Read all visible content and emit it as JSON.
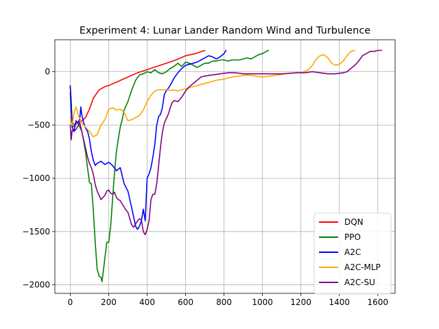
{
  "chart_data": {
    "type": "line",
    "title": "Experiment 4: Lunar Lander Random Wind and Turbulence",
    "xlabel": "",
    "ylabel": "",
    "xlim": [
      -80,
      1690
    ],
    "ylim": [
      -2080,
      300
    ],
    "xticks": [
      0,
      200,
      400,
      600,
      800,
      1000,
      1200,
      1400,
      1600
    ],
    "yticks": [
      -2000,
      -1500,
      -1000,
      -500,
      0
    ],
    "ytick_labels": [
      "−2000",
      "−1500",
      "−1000",
      "−500",
      "0"
    ],
    "grid": true,
    "legend_position": "lower-right",
    "series": [
      {
        "name": "DQN",
        "color": "#ff0000",
        "points": [
          [
            0,
            -130
          ],
          [
            5,
            -280
          ],
          [
            10,
            -470
          ],
          [
            20,
            -500
          ],
          [
            40,
            -480
          ],
          [
            60,
            -460
          ],
          [
            80,
            -430
          ],
          [
            100,
            -350
          ],
          [
            120,
            -250
          ],
          [
            150,
            -170
          ],
          [
            180,
            -140
          ],
          [
            200,
            -130
          ],
          [
            250,
            -90
          ],
          [
            300,
            -50
          ],
          [
            350,
            -10
          ],
          [
            400,
            20
          ],
          [
            450,
            50
          ],
          [
            500,
            80
          ],
          [
            550,
            110
          ],
          [
            600,
            150
          ],
          [
            650,
            170
          ],
          [
            700,
            200
          ]
        ]
      },
      {
        "name": "PPO",
        "color": "#008000",
        "points": [
          [
            0,
            -200
          ],
          [
            5,
            -380
          ],
          [
            10,
            -520
          ],
          [
            20,
            -510
          ],
          [
            30,
            -470
          ],
          [
            40,
            -480
          ],
          [
            50,
            -520
          ],
          [
            60,
            -560
          ],
          [
            70,
            -650
          ],
          [
            80,
            -760
          ],
          [
            90,
            -900
          ],
          [
            100,
            -1040
          ],
          [
            110,
            -1050
          ],
          [
            120,
            -1300
          ],
          [
            130,
            -1600
          ],
          [
            140,
            -1850
          ],
          [
            150,
            -1920
          ],
          [
            160,
            -1930
          ],
          [
            165,
            -1970
          ],
          [
            170,
            -1900
          ],
          [
            180,
            -1750
          ],
          [
            190,
            -1600
          ],
          [
            200,
            -1600
          ],
          [
            210,
            -1450
          ],
          [
            220,
            -1200
          ],
          [
            230,
            -950
          ],
          [
            240,
            -750
          ],
          [
            250,
            -630
          ],
          [
            260,
            -520
          ],
          [
            270,
            -450
          ],
          [
            280,
            -360
          ],
          [
            300,
            -280
          ],
          [
            320,
            -170
          ],
          [
            340,
            -80
          ],
          [
            360,
            -30
          ],
          [
            380,
            -20
          ],
          [
            400,
            0
          ],
          [
            420,
            -10
          ],
          [
            440,
            20
          ],
          [
            460,
            -10
          ],
          [
            480,
            -20
          ],
          [
            500,
            0
          ],
          [
            520,
            30
          ],
          [
            540,
            50
          ],
          [
            560,
            80
          ],
          [
            580,
            50
          ],
          [
            600,
            90
          ],
          [
            620,
            80
          ],
          [
            640,
            60
          ],
          [
            660,
            40
          ],
          [
            680,
            60
          ],
          [
            700,
            80
          ],
          [
            720,
            80
          ],
          [
            740,
            100
          ],
          [
            760,
            100
          ],
          [
            780,
            110
          ],
          [
            800,
            110
          ],
          [
            820,
            100
          ],
          [
            840,
            110
          ],
          [
            860,
            110
          ],
          [
            880,
            110
          ],
          [
            900,
            120
          ],
          [
            920,
            130
          ],
          [
            940,
            120
          ],
          [
            960,
            140
          ],
          [
            980,
            160
          ],
          [
            1000,
            170
          ],
          [
            1020,
            190
          ],
          [
            1030,
            200
          ]
        ]
      },
      {
        "name": "A2C",
        "color": "#0000ff",
        "points": [
          [
            0,
            -140
          ],
          [
            5,
            -300
          ],
          [
            10,
            -520
          ],
          [
            20,
            -560
          ],
          [
            30,
            -460
          ],
          [
            40,
            -480
          ],
          [
            50,
            -440
          ],
          [
            55,
            -330
          ],
          [
            60,
            -400
          ],
          [
            70,
            -480
          ],
          [
            80,
            -530
          ],
          [
            90,
            -560
          ],
          [
            100,
            -630
          ],
          [
            110,
            -750
          ],
          [
            120,
            -830
          ],
          [
            130,
            -880
          ],
          [
            140,
            -860
          ],
          [
            160,
            -840
          ],
          [
            180,
            -870
          ],
          [
            200,
            -850
          ],
          [
            220,
            -880
          ],
          [
            240,
            -930
          ],
          [
            260,
            -900
          ],
          [
            280,
            -1050
          ],
          [
            300,
            -1120
          ],
          [
            320,
            -1280
          ],
          [
            340,
            -1450
          ],
          [
            350,
            -1480
          ],
          [
            360,
            -1450
          ],
          [
            370,
            -1400
          ],
          [
            380,
            -1290
          ],
          [
            390,
            -1400
          ],
          [
            400,
            -1000
          ],
          [
            410,
            -960
          ],
          [
            420,
            -900
          ],
          [
            430,
            -800
          ],
          [
            440,
            -680
          ],
          [
            450,
            -500
          ],
          [
            460,
            -420
          ],
          [
            470,
            -400
          ],
          [
            480,
            -330
          ],
          [
            490,
            -210
          ],
          [
            500,
            -180
          ],
          [
            520,
            -130
          ],
          [
            540,
            -60
          ],
          [
            560,
            -10
          ],
          [
            580,
            30
          ],
          [
            600,
            60
          ],
          [
            620,
            70
          ],
          [
            640,
            80
          ],
          [
            660,
            90
          ],
          [
            680,
            110
          ],
          [
            700,
            130
          ],
          [
            720,
            150
          ],
          [
            740,
            140
          ],
          [
            760,
            120
          ],
          [
            780,
            140
          ],
          [
            800,
            170
          ],
          [
            810,
            200
          ]
        ]
      },
      {
        "name": "A2C-MLP",
        "color": "#ffa500",
        "points": [
          [
            0,
            -420
          ],
          [
            5,
            -480
          ],
          [
            10,
            -500
          ],
          [
            20,
            -380
          ],
          [
            30,
            -330
          ],
          [
            40,
            -400
          ],
          [
            60,
            -480
          ],
          [
            80,
            -520
          ],
          [
            100,
            -560
          ],
          [
            120,
            -610
          ],
          [
            140,
            -590
          ],
          [
            160,
            -500
          ],
          [
            180,
            -450
          ],
          [
            200,
            -350
          ],
          [
            220,
            -340
          ],
          [
            240,
            -360
          ],
          [
            260,
            -350
          ],
          [
            280,
            -380
          ],
          [
            300,
            -460
          ],
          [
            320,
            -450
          ],
          [
            340,
            -430
          ],
          [
            360,
            -410
          ],
          [
            380,
            -360
          ],
          [
            400,
            -280
          ],
          [
            420,
            -220
          ],
          [
            440,
            -180
          ],
          [
            460,
            -170
          ],
          [
            480,
            -170
          ],
          [
            500,
            -170
          ],
          [
            520,
            -175
          ],
          [
            540,
            -170
          ],
          [
            560,
            -180
          ],
          [
            580,
            -170
          ],
          [
            600,
            -160
          ],
          [
            640,
            -140
          ],
          [
            680,
            -120
          ],
          [
            720,
            -100
          ],
          [
            760,
            -80
          ],
          [
            800,
            -70
          ],
          [
            840,
            -50
          ],
          [
            880,
            -40
          ],
          [
            920,
            -30
          ],
          [
            960,
            -40
          ],
          [
            1000,
            -50
          ],
          [
            1040,
            -40
          ],
          [
            1080,
            -30
          ],
          [
            1120,
            -20
          ],
          [
            1160,
            -10
          ],
          [
            1200,
            -10
          ],
          [
            1240,
            20
          ],
          [
            1260,
            60
          ],
          [
            1280,
            120
          ],
          [
            1300,
            150
          ],
          [
            1320,
            160
          ],
          [
            1340,
            130
          ],
          [
            1360,
            80
          ],
          [
            1380,
            60
          ],
          [
            1400,
            70
          ],
          [
            1420,
            100
          ],
          [
            1440,
            150
          ],
          [
            1460,
            190
          ],
          [
            1480,
            200
          ]
        ]
      },
      {
        "name": "A2C-SU",
        "color": "#800080",
        "points": [
          [
            0,
            -500
          ],
          [
            5,
            -640
          ],
          [
            10,
            -550
          ],
          [
            20,
            -560
          ],
          [
            30,
            -540
          ],
          [
            40,
            -510
          ],
          [
            50,
            -480
          ],
          [
            60,
            -560
          ],
          [
            70,
            -640
          ],
          [
            80,
            -720
          ],
          [
            90,
            -800
          ],
          [
            100,
            -860
          ],
          [
            110,
            -900
          ],
          [
            120,
            -960
          ],
          [
            130,
            -1060
          ],
          [
            140,
            -1120
          ],
          [
            150,
            -1160
          ],
          [
            160,
            -1200
          ],
          [
            170,
            -1180
          ],
          [
            180,
            -1160
          ],
          [
            190,
            -1120
          ],
          [
            200,
            -1110
          ],
          [
            210,
            -1140
          ],
          [
            220,
            -1150
          ],
          [
            230,
            -1130
          ],
          [
            240,
            -1180
          ],
          [
            250,
            -1200
          ],
          [
            260,
            -1210
          ],
          [
            270,
            -1240
          ],
          [
            280,
            -1270
          ],
          [
            290,
            -1300
          ],
          [
            300,
            -1320
          ],
          [
            310,
            -1380
          ],
          [
            320,
            -1440
          ],
          [
            330,
            -1460
          ],
          [
            340,
            -1430
          ],
          [
            350,
            -1400
          ],
          [
            360,
            -1380
          ],
          [
            370,
            -1390
          ],
          [
            380,
            -1500
          ],
          [
            390,
            -1530
          ],
          [
            400,
            -1480
          ],
          [
            410,
            -1400
          ],
          [
            420,
            -1200
          ],
          [
            430,
            -1150
          ],
          [
            440,
            -1150
          ],
          [
            450,
            -1050
          ],
          [
            460,
            -880
          ],
          [
            470,
            -700
          ],
          [
            480,
            -560
          ],
          [
            490,
            -480
          ],
          [
            500,
            -440
          ],
          [
            510,
            -400
          ],
          [
            520,
            -340
          ],
          [
            530,
            -290
          ],
          [
            540,
            -270
          ],
          [
            560,
            -280
          ],
          [
            580,
            -240
          ],
          [
            600,
            -180
          ],
          [
            620,
            -140
          ],
          [
            640,
            -110
          ],
          [
            660,
            -80
          ],
          [
            680,
            -50
          ],
          [
            700,
            -40
          ],
          [
            740,
            -30
          ],
          [
            780,
            -20
          ],
          [
            820,
            -10
          ],
          [
            860,
            -10
          ],
          [
            900,
            -20
          ],
          [
            940,
            -20
          ],
          [
            980,
            -20
          ],
          [
            1020,
            -20
          ],
          [
            1060,
            -20
          ],
          [
            1100,
            -20
          ],
          [
            1140,
            -15
          ],
          [
            1180,
            -10
          ],
          [
            1220,
            -10
          ],
          [
            1260,
            0
          ],
          [
            1300,
            -10
          ],
          [
            1340,
            -20
          ],
          [
            1380,
            -20
          ],
          [
            1420,
            -10
          ],
          [
            1440,
            0
          ],
          [
            1460,
            30
          ],
          [
            1480,
            60
          ],
          [
            1500,
            100
          ],
          [
            1520,
            150
          ],
          [
            1540,
            170
          ],
          [
            1560,
            190
          ],
          [
            1580,
            190
          ],
          [
            1600,
            200
          ],
          [
            1620,
            200
          ]
        ]
      }
    ]
  }
}
